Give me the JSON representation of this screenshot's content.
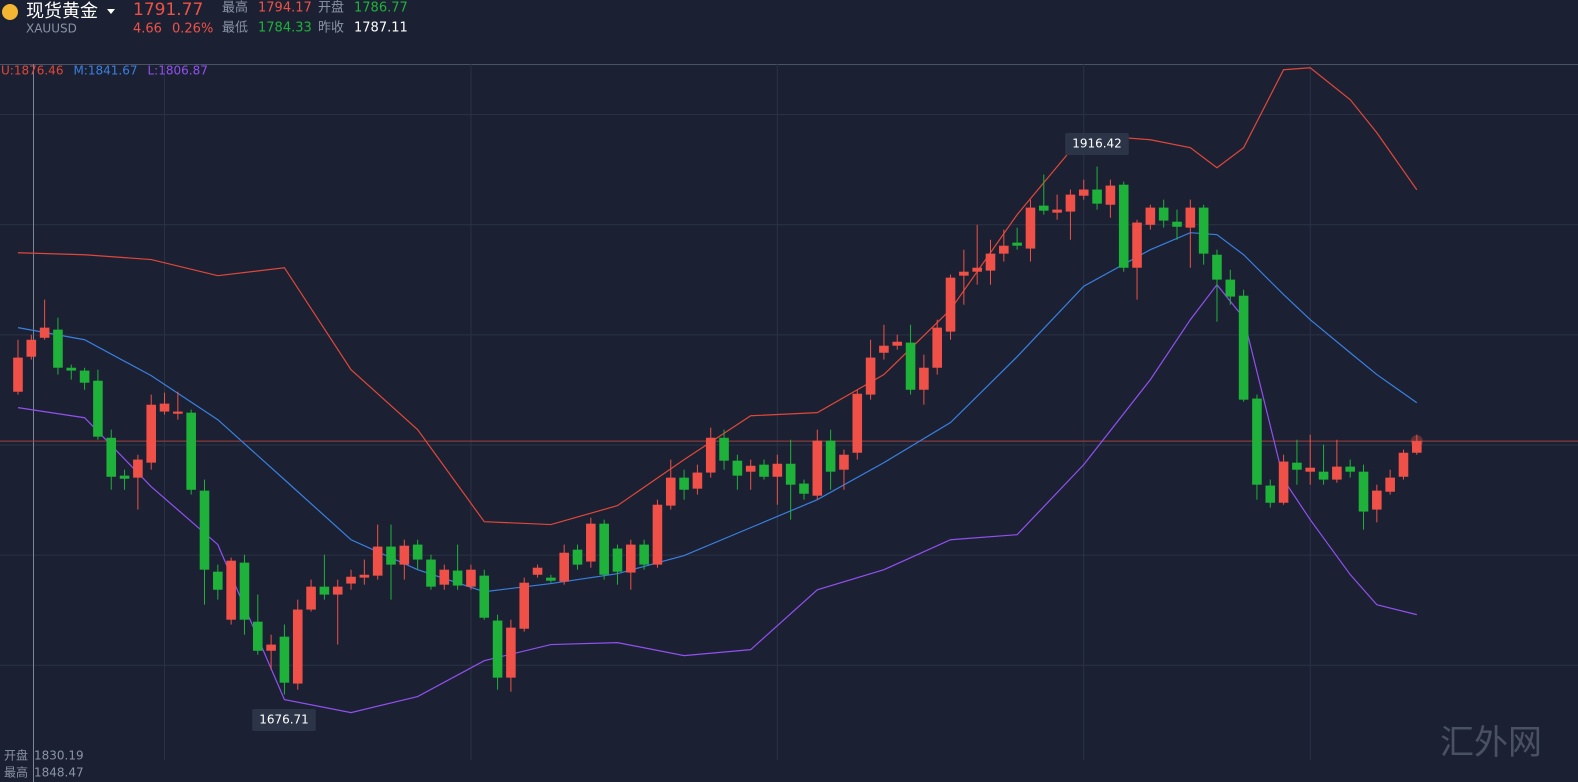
{
  "header": {
    "name": "现货黄金",
    "symbol": "XAUUSD",
    "price": 1791.77,
    "change": 4.66,
    "change_pct": "0.26%",
    "stats": [
      {
        "label": "最高",
        "value": 1794.17
      },
      {
        "label": "开盘",
        "value": 1786.77
      },
      {
        "label": "最低",
        "value": 1784.33
      },
      {
        "label": "昨收",
        "value": 1787.11
      }
    ]
  },
  "chart_data": {
    "type": "candlestick",
    "up_color": "#ef5148",
    "down_color": "#1fb23a",
    "categories": [
      null,
      null,
      null,
      null,
      null,
      null,
      null,
      null,
      null,
      null,
      null,
      null,
      null,
      null,
      null,
      null,
      null,
      null,
      null,
      null,
      null,
      null,
      null,
      null,
      null,
      null,
      null,
      null,
      null,
      null,
      null,
      null,
      null,
      null,
      null,
      null,
      null,
      null,
      null,
      null,
      null,
      null,
      null,
      null,
      null,
      null,
      null,
      null,
      null,
      null,
      null,
      null,
      null,
      null,
      null,
      null,
      null,
      null,
      null,
      null,
      null,
      null,
      null,
      null,
      null,
      null,
      null,
      null,
      null,
      null,
      null,
      null,
      null,
      null,
      null,
      null,
      null,
      null,
      null,
      null,
      null,
      null,
      null,
      null,
      null,
      null,
      null,
      null,
      null,
      null,
      null,
      null,
      null,
      null,
      null,
      null,
      null,
      null,
      null,
      null,
      null,
      null,
      null,
      null,
      null,
      null
    ],
    "open": [
      1814.2,
      1830.1,
      1838.7,
      1842.4,
      1825.1,
      1823.8,
      1819.2,
      1793.3,
      1776.1,
      1775.2,
      1782.0,
      1805.2,
      1804.2,
      1804.7,
      1769.3,
      1732.5,
      1710.7,
      1736.6,
      1709.8,
      1696.6,
      1703.0,
      1681.7,
      1715.3,
      1725.7,
      1722.1,
      1727.1,
      1729.8,
      1730.7,
      1743.9,
      1735.7,
      1744.8,
      1738.0,
      1726.6,
      1733.0,
      1725.7,
      1730.7,
      1710.3,
      1684.4,
      1706.6,
      1731.1,
      1729.8,
      1728.0,
      1742.5,
      1737.1,
      1754.3,
      1743.0,
      1732.1,
      1744.8,
      1735.7,
      1762.5,
      1775.2,
      1770.2,
      1777.5,
      1793.3,
      1782.9,
      1777.9,
      1781.1,
      1775.6,
      1781.5,
      1772.5,
      1767.0,
      1792.0,
      1778.8,
      1786.5,
      1812.9,
      1831.9,
      1835.1,
      1836.5,
      1815.1,
      1825.1,
      1841.5,
      1866.9,
      1868.7,
      1869.2,
      1876.9,
      1881.9,
      1879.2,
      1898.7,
      1895.5,
      1896.0,
      1903.2,
      1906.0,
      1899.1,
      1908.2,
      1870.5,
      1890.0,
      1897.8,
      1891.4,
      1888.7,
      1897.8,
      1876.4,
      1865.1,
      1857.8,
      1811.1,
      1771.6,
      1763.8,
      1782.0,
      1777.9,
      1777.9,
      1774.3,
      1780.2,
      1777.9,
      1760.7,
      1768.8,
      1775.6,
      1786.5
    ],
    "high": [
      1837.8,
      1840.1,
      1856.0,
      1847.8,
      1826.5,
      1825.1,
      1824.2,
      1797.0,
      1778.8,
      1785.6,
      1812.9,
      1813.8,
      1814.2,
      1806.1,
      1774.3,
      1735.7,
      1738.9,
      1740.2,
      1722.1,
      1703.9,
      1708.5,
      1719.8,
      1728.9,
      1740.2,
      1728.9,
      1733.4,
      1738.0,
      1753.9,
      1753.9,
      1747.0,
      1747.0,
      1740.2,
      1735.7,
      1744.8,
      1735.7,
      1733.4,
      1713.0,
      1710.7,
      1729.8,
      1735.7,
      1731.1,
      1744.8,
      1744.8,
      1757.0,
      1756.1,
      1744.8,
      1747.0,
      1747.0,
      1765.2,
      1783.4,
      1778.8,
      1781.1,
      1797.9,
      1797.0,
      1785.6,
      1783.4,
      1783.4,
      1785.6,
      1792.4,
      1774.3,
      1797.0,
      1797.0,
      1787.9,
      1815.1,
      1837.8,
      1844.6,
      1840.1,
      1844.6,
      1831.0,
      1846.9,
      1867.4,
      1878.7,
      1890.0,
      1883.2,
      1887.8,
      1888.7,
      1901.4,
      1912.8,
      1903.7,
      1906.0,
      1910.5,
      1916.42,
      1910.5,
      1909.6,
      1892.3,
      1899.1,
      1901.4,
      1896.9,
      1901.4,
      1899.1,
      1878.7,
      1869.6,
      1860.5,
      1812.9,
      1774.3,
      1785.6,
      1792.4,
      1794.7,
      1790.2,
      1792.4,
      1783.4,
      1781.1,
      1772.0,
      1778.8,
      1787.9,
      1794.7
    ],
    "low": [
      1812.9,
      1828.8,
      1837.8,
      1822.0,
      1819.7,
      1815.1,
      1792.4,
      1769.7,
      1769.7,
      1760.7,
      1778.8,
      1803.8,
      1801.5,
      1767.5,
      1717.5,
      1719.8,
      1708.5,
      1703.9,
      1694.8,
      1688.0,
      1676.71,
      1678.9,
      1714.4,
      1719.8,
      1699.4,
      1724.3,
      1726.6,
      1728.9,
      1719.8,
      1728.9,
      1733.4,
      1724.3,
      1724.3,
      1724.3,
      1724.3,
      1710.7,
      1678.9,
      1678.0,
      1705.3,
      1729.8,
      1727.5,
      1726.6,
      1733.4,
      1734.3,
      1728.9,
      1726.6,
      1724.3,
      1733.4,
      1734.3,
      1760.7,
      1765.2,
      1767.5,
      1775.2,
      1778.8,
      1769.7,
      1769.7,
      1774.3,
      1762.9,
      1756.1,
      1765.2,
      1765.2,
      1769.7,
      1769.7,
      1783.4,
      1810.6,
      1828.8,
      1833.3,
      1812.9,
      1808.3,
      1822.0,
      1837.8,
      1853.7,
      1862.8,
      1862.8,
      1873.3,
      1878.7,
      1873.3,
      1894.6,
      1892.3,
      1883.2,
      1901.4,
      1896.9,
      1893.2,
      1868.7,
      1856.0,
      1887.8,
      1888.7,
      1883.2,
      1870.5,
      1871.9,
      1846.0,
      1853.7,
      1809.7,
      1765.2,
      1761.6,
      1762.9,
      1772.0,
      1772.0,
      1772.0,
      1772.9,
      1775.2,
      1751.6,
      1754.9,
      1767.5,
      1774.3,
      1785.6
    ],
    "close": [
      1829.7,
      1837.8,
      1843.3,
      1825.1,
      1823.8,
      1818.3,
      1793.8,
      1775.6,
      1774.7,
      1783.4,
      1808.3,
      1808.8,
      1805.2,
      1769.7,
      1733.4,
      1724.3,
      1737.5,
      1710.7,
      1696.6,
      1699.4,
      1682.1,
      1715.3,
      1725.7,
      1722.1,
      1725.7,
      1730.2,
      1731.1,
      1743.9,
      1735.7,
      1744.3,
      1738.0,
      1725.7,
      1733.4,
      1726.2,
      1733.4,
      1711.6,
      1684.4,
      1707.1,
      1727.5,
      1734.3,
      1728.4,
      1741.1,
      1735.7,
      1754.3,
      1731.1,
      1732.5,
      1744.8,
      1735.7,
      1762.9,
      1775.2,
      1769.7,
      1777.5,
      1793.3,
      1782.9,
      1776.1,
      1780.6,
      1775.6,
      1781.5,
      1772.0,
      1767.9,
      1792.0,
      1777.9,
      1785.6,
      1813.3,
      1829.7,
      1835.1,
      1836.9,
      1815.1,
      1825.1,
      1843.3,
      1866.0,
      1868.7,
      1870.5,
      1876.9,
      1880.5,
      1880.5,
      1897.8,
      1896.4,
      1896.9,
      1903.7,
      1906.0,
      1899.6,
      1907.8,
      1870.5,
      1891.0,
      1897.8,
      1891.9,
      1889.1,
      1897.8,
      1876.9,
      1865.1,
      1857.4,
      1810.6,
      1772.0,
      1763.8,
      1782.5,
      1778.8,
      1779.7,
      1774.3,
      1780.2,
      1777.9,
      1759.8,
      1769.3,
      1775.2,
      1786.5,
      1791.77
    ],
    "series": [
      {
        "name": "U:1876.46",
        "color": "#e0473a",
        "x": [
          0,
          5,
          10,
          15,
          20,
          25,
          30,
          35,
          40,
          45,
          50,
          55,
          60,
          65,
          70,
          75,
          80,
          85,
          88,
          90,
          92,
          95,
          97,
          100,
          102,
          105
        ],
        "values": [
          1877.3,
          1876.4,
          1874.2,
          1866.9,
          1870.5,
          1824.2,
          1797.0,
          1755.2,
          1753.9,
          1762.5,
          1783.4,
          1803.3,
          1804.7,
          1822.0,
          1851.5,
          1894.6,
          1930.9,
          1928.6,
          1925.0,
          1915.9,
          1925.0,
          1960.4,
          1961.3,
          1946.8,
          1931.8,
          1905.9
        ]
      },
      {
        "name": "M:1841.67",
        "color": "#3a7fe0",
        "x": [
          0,
          5,
          10,
          15,
          20,
          25,
          30,
          35,
          40,
          45,
          50,
          55,
          60,
          65,
          70,
          75,
          80,
          85,
          88,
          90,
          92,
          95,
          97,
          100,
          102,
          105
        ],
        "values": [
          1843.3,
          1837.8,
          1821.5,
          1801.5,
          1774.3,
          1747.0,
          1733.4,
          1723.4,
          1727.1,
          1731.6,
          1739.8,
          1752.5,
          1765.2,
          1782.0,
          1800.2,
          1830.1,
          1862.1,
          1878.7,
          1886.4,
          1885.5,
          1876.4,
          1858.3,
          1846.9,
          1831.9,
          1822.0,
          1809.2
        ]
      },
      {
        "name": "L:1806.87",
        "color": "#9150f0",
        "x": [
          0,
          5,
          10,
          15,
          20,
          25,
          30,
          35,
          40,
          45,
          50,
          55,
          60,
          65,
          70,
          75,
          80,
          85,
          88,
          90,
          92,
          95,
          97,
          100,
          102,
          105
        ],
        "values": [
          1807.0,
          1802.4,
          1771.1,
          1744.8,
          1674.4,
          1668.5,
          1675.8,
          1692.1,
          1699.4,
          1700.3,
          1694.4,
          1697.1,
          1724.3,
          1733.4,
          1747.0,
          1749.3,
          1781.1,
          1819.7,
          1846.9,
          1862.8,
          1847.8,
          1774.3,
          1756.1,
          1731.2,
          1717.5,
          1713.0
        ]
      }
    ],
    "annotations": [
      "1916.42",
      "1676.71"
    ],
    "xlim": [
      -1.35,
      117.1
    ],
    "ylim": [
      1647,
      1963
    ],
    "xticks": [
      11,
      34,
      57,
      80,
      97
    ],
    "yticks": [
      1690,
      1740,
      1790,
      1840,
      1890,
      1940
    ],
    "grid": true
  },
  "footer": [
    {
      "label": "开盘",
      "value": 1830.19
    },
    {
      "label": "最高",
      "value": 1848.47
    }
  ],
  "watermark": "汇外网"
}
